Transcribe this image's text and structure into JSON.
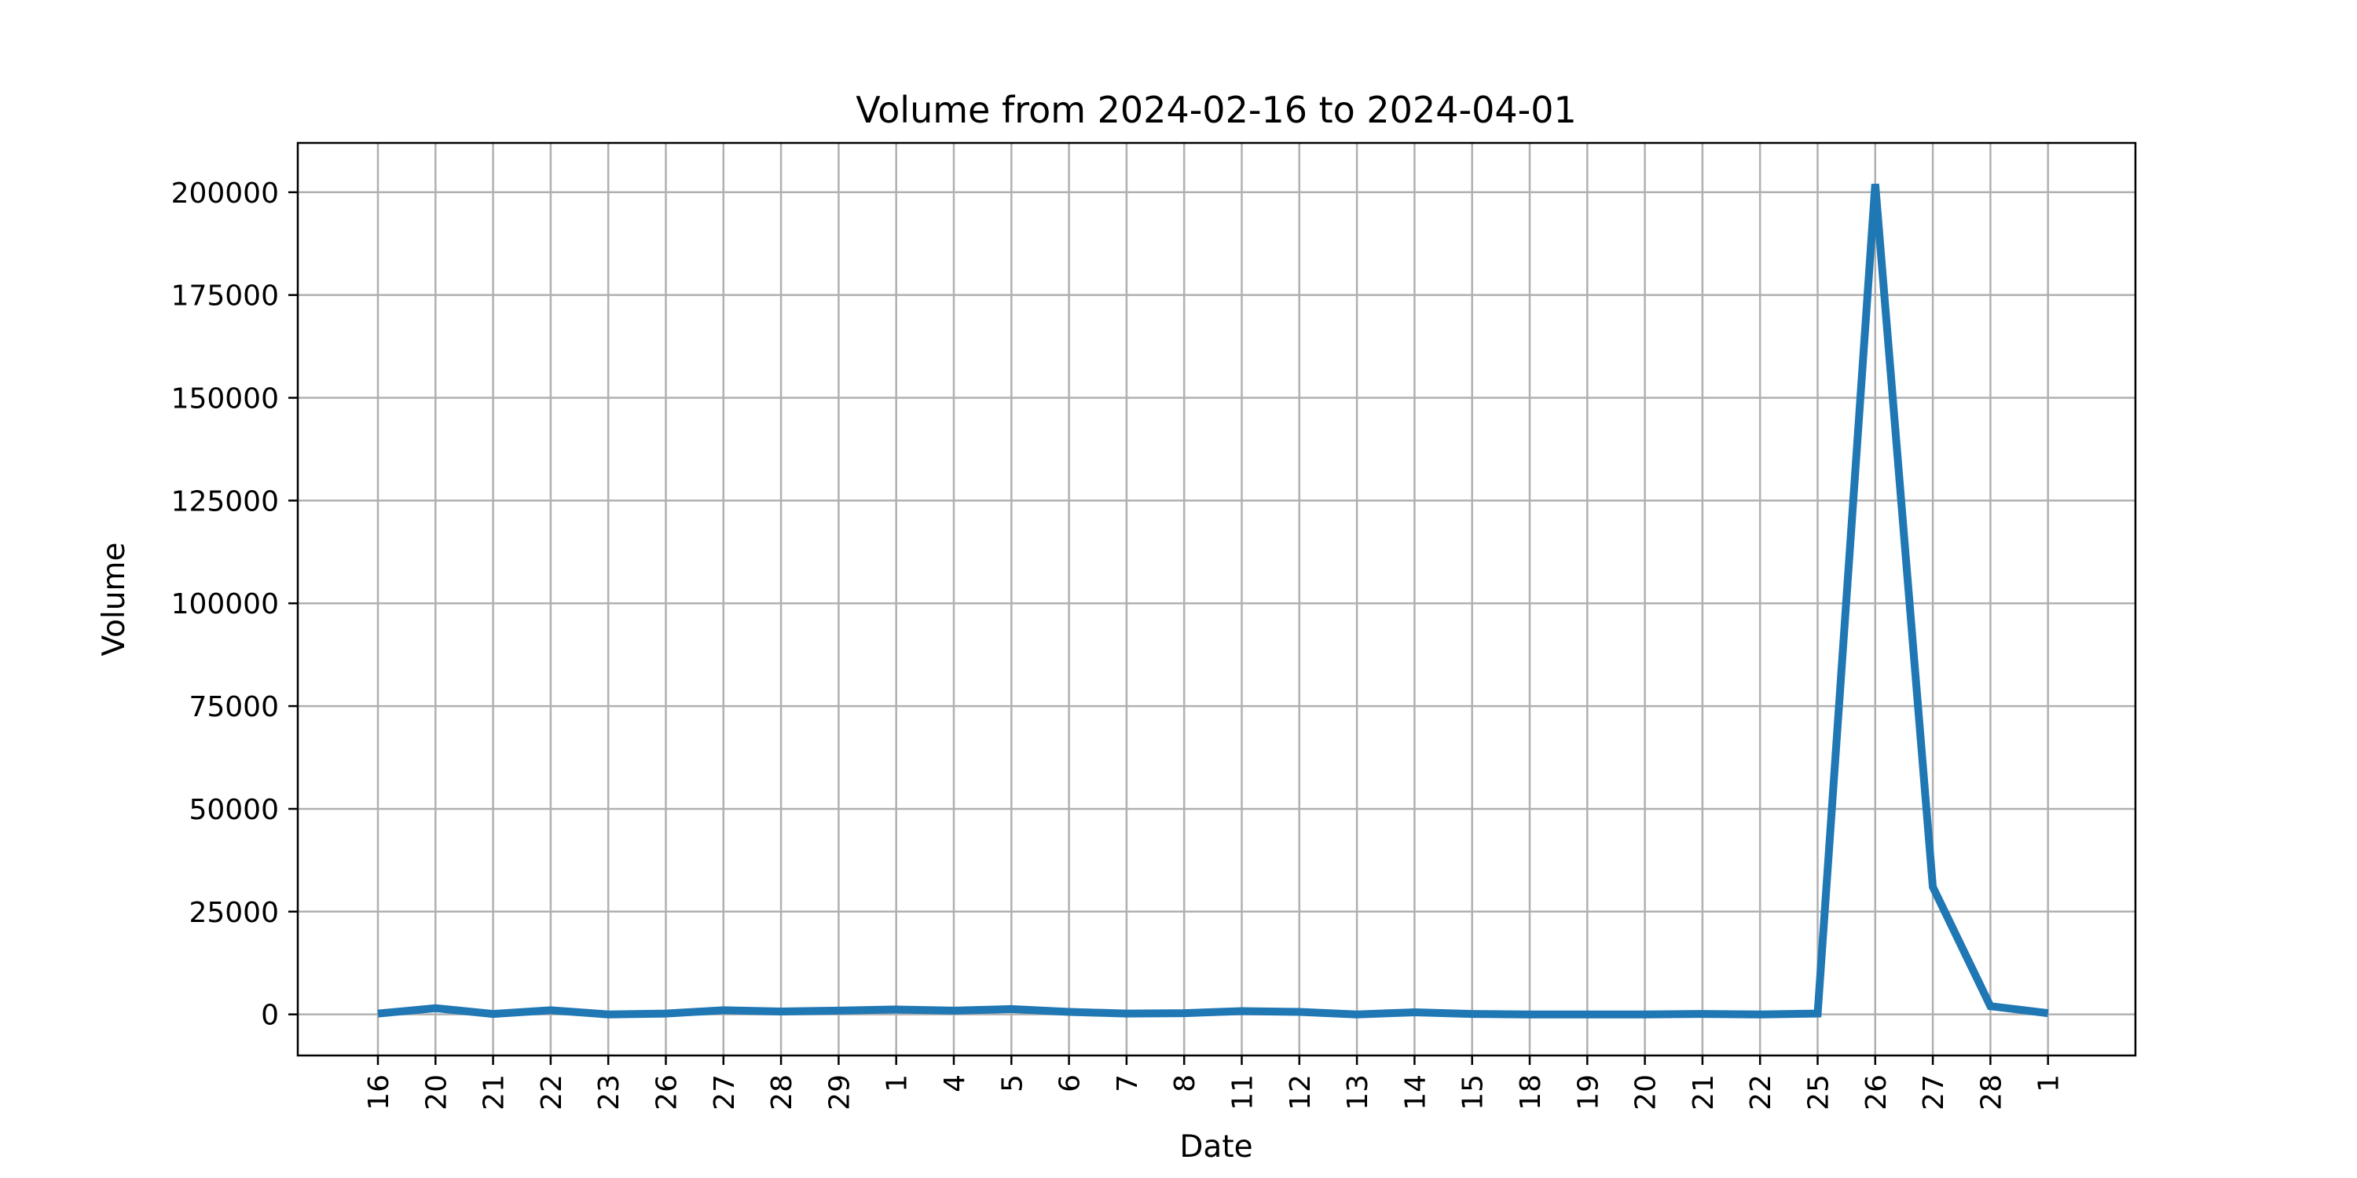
{
  "chart_data": {
    "type": "line",
    "title": "Volume from 2024-02-16 to 2024-04-01",
    "xlabel": "Date",
    "ylabel": "Volume",
    "ylim": [
      -10000,
      212000
    ],
    "yticks": [
      0,
      25000,
      50000,
      75000,
      100000,
      125000,
      150000,
      175000,
      200000
    ],
    "ytick_labels": [
      "0",
      "25000",
      "50000",
      "75000",
      "100000",
      "125000",
      "150000",
      "175000",
      "200000"
    ],
    "grid": true,
    "legend": "none",
    "line_color": "#1f77b4",
    "x": [
      "2024-02-16",
      "2024-02-20",
      "2024-02-21",
      "2024-02-22",
      "2024-02-23",
      "2024-02-26",
      "2024-02-27",
      "2024-02-28",
      "2024-02-29",
      "2024-03-01",
      "2024-03-04",
      "2024-03-05",
      "2024-03-06",
      "2024-03-07",
      "2024-03-08",
      "2024-03-11",
      "2024-03-12",
      "2024-03-13",
      "2024-03-14",
      "2024-03-15",
      "2024-03-18",
      "2024-03-19",
      "2024-03-20",
      "2024-03-21",
      "2024-03-22",
      "2024-03-25",
      "2024-03-26",
      "2024-03-27",
      "2024-03-28",
      "2024-04-01"
    ],
    "xtick_labels": [
      "16",
      "20",
      "21",
      "22",
      "23",
      "26",
      "27",
      "28",
      "29",
      "1",
      "4",
      "5",
      "6",
      "7",
      "8",
      "11",
      "12",
      "13",
      "14",
      "15",
      "18",
      "19",
      "20",
      "21",
      "22",
      "25",
      "26",
      "27",
      "28",
      "1"
    ],
    "series": [
      {
        "values": [
          200,
          1500,
          100,
          1000,
          0,
          200,
          1000,
          700,
          900,
          1200,
          900,
          1300,
          600,
          200,
          300,
          800,
          600,
          0,
          500,
          100,
          0,
          0,
          0,
          100,
          0,
          200,
          202000,
          31000,
          2000,
          300
        ]
      }
    ]
  }
}
